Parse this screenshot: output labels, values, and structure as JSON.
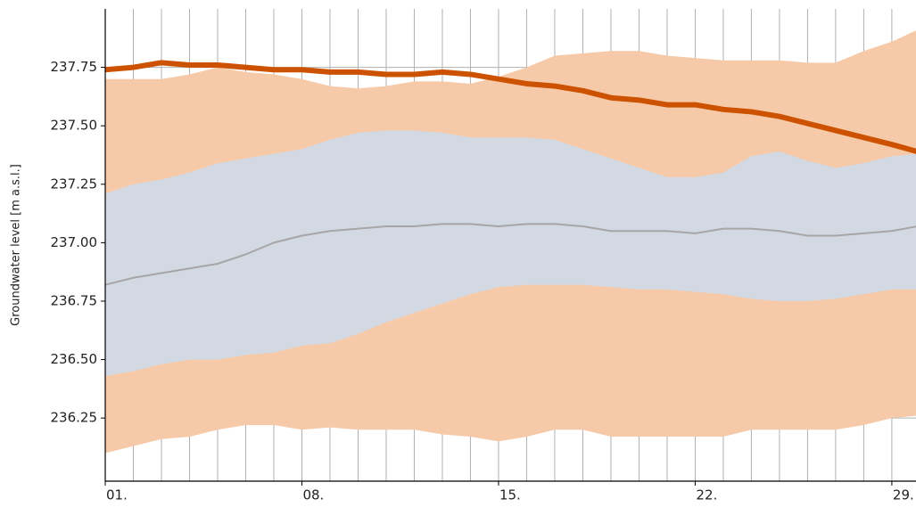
{
  "chart_data": {
    "type": "band-line",
    "y_label": "Groundwater level [m a.s.l.]",
    "x": [
      1,
      2,
      3,
      4,
      5,
      6,
      7,
      8,
      9,
      10,
      11,
      12,
      13,
      14,
      15,
      16,
      17,
      18,
      19,
      20,
      21,
      22,
      23,
      24,
      25,
      26,
      27,
      28,
      29,
      29.9
    ],
    "bands": [
      {
        "color": "#f6c9a8",
        "upper": [
          237.7,
          237.7,
          237.7,
          237.72,
          237.75,
          237.73,
          237.72,
          237.7,
          237.67,
          237.66,
          237.67,
          237.69,
          237.69,
          237.68,
          237.71,
          237.75,
          237.8,
          237.81,
          237.82,
          237.82,
          237.8,
          237.79,
          237.78,
          237.78,
          237.78,
          237.77,
          237.77,
          237.82,
          237.86,
          237.91
        ],
        "lower": [
          236.1,
          236.13,
          236.16,
          236.17,
          236.2,
          236.22,
          236.22,
          236.2,
          236.21,
          236.2,
          236.2,
          236.2,
          236.18,
          236.17,
          236.15,
          236.17,
          236.2,
          236.2,
          236.17,
          236.17,
          236.17,
          236.17,
          236.17,
          236.2,
          236.2,
          236.2,
          236.2,
          236.22,
          236.25,
          236.26
        ]
      },
      {
        "color": "#d3d9e3",
        "upper": [
          237.21,
          237.25,
          237.27,
          237.3,
          237.34,
          237.36,
          237.38,
          237.4,
          237.44,
          237.47,
          237.48,
          237.48,
          237.47,
          237.45,
          237.45,
          237.45,
          237.44,
          237.4,
          237.36,
          237.32,
          237.28,
          237.28,
          237.3,
          237.37,
          237.39,
          237.35,
          237.32,
          237.34,
          237.37,
          237.38
        ],
        "lower": [
          236.43,
          236.45,
          236.48,
          236.5,
          236.5,
          236.52,
          236.53,
          236.56,
          236.57,
          236.61,
          236.66,
          236.7,
          236.74,
          236.78,
          236.81,
          236.82,
          236.82,
          236.82,
          236.81,
          236.8,
          236.8,
          236.79,
          236.78,
          236.76,
          236.75,
          236.75,
          236.76,
          236.78,
          236.8,
          236.8
        ]
      }
    ],
    "series": [
      {
        "color": "#a6a6a6",
        "width": 2,
        "values": [
          236.82,
          236.85,
          236.87,
          236.89,
          236.91,
          236.95,
          237.0,
          237.03,
          237.05,
          237.06,
          237.07,
          237.07,
          237.08,
          237.08,
          237.07,
          237.08,
          237.08,
          237.07,
          237.05,
          237.05,
          237.05,
          237.04,
          237.06,
          237.06,
          237.05,
          237.03,
          237.03,
          237.04,
          237.05,
          237.07
        ]
      },
      {
        "color": "#cc5200",
        "width": 6,
        "values": [
          237.74,
          237.75,
          237.77,
          237.76,
          237.76,
          237.75,
          237.74,
          237.74,
          237.73,
          237.73,
          237.72,
          237.72,
          237.73,
          237.72,
          237.7,
          237.68,
          237.67,
          237.65,
          237.62,
          237.61,
          237.59,
          237.59,
          237.57,
          237.56,
          237.54,
          237.51,
          237.48,
          237.45,
          237.42,
          237.39
        ]
      }
    ],
    "xlim": [
      1,
      29.86
    ],
    "ylim": [
      235.98,
      238.0
    ],
    "xticks": [
      {
        "value": 1,
        "label": "01."
      },
      {
        "value": 8,
        "label": "08."
      },
      {
        "value": 15,
        "label": "15."
      },
      {
        "value": 22,
        "label": "22."
      },
      {
        "value": 29,
        "label": "29."
      }
    ],
    "x_minor_ticks": [
      1,
      2,
      3,
      4,
      5,
      6,
      7,
      8,
      9,
      10,
      11,
      12,
      13,
      14,
      15,
      16,
      17,
      18,
      19,
      20,
      21,
      22,
      23,
      24,
      25,
      26,
      27,
      28,
      29
    ],
    "yticks": [
      {
        "value": 236.25,
        "label": "236.25"
      },
      {
        "value": 236.5,
        "label": "236.50"
      },
      {
        "value": 236.75,
        "label": "236.75"
      },
      {
        "value": 237,
        "label": "237.00"
      },
      {
        "value": 237.25,
        "label": "237.25"
      },
      {
        "value": 237.5,
        "label": "237.50"
      },
      {
        "value": 237.75,
        "label": "237.75"
      }
    ],
    "grid": true,
    "grid_color": "#b0b0b0"
  }
}
